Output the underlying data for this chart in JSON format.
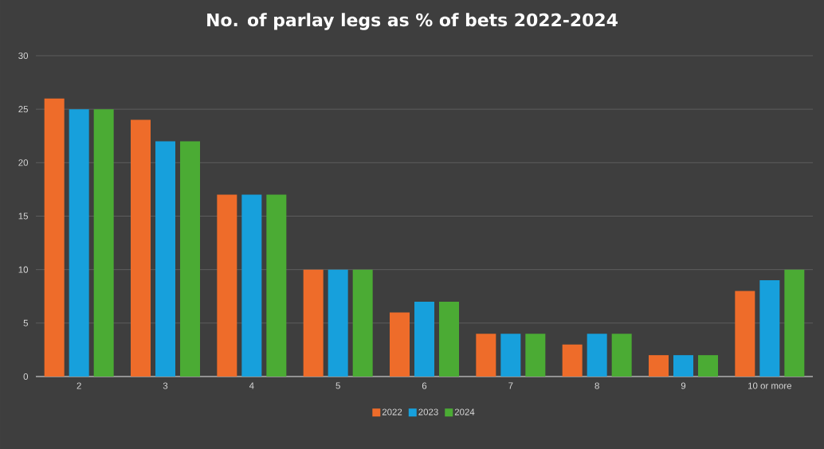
{
  "chart_data": {
    "type": "bar",
    "title": "No. of parlay legs as % of bets 2022-2024",
    "categories": [
      "2",
      "3",
      "4",
      "5",
      "6",
      "7",
      "8",
      "9",
      "10 or more"
    ],
    "series": [
      {
        "name": "2022",
        "color": "#ee6c2a",
        "values": [
          26,
          24,
          17,
          10,
          6,
          4,
          3,
          2,
          8
        ]
      },
      {
        "name": "2023",
        "color": "#17a0dc",
        "values": [
          25,
          22,
          17,
          10,
          7,
          4,
          4,
          2,
          9
        ]
      },
      {
        "name": "2024",
        "color": "#4bab34",
        "values": [
          25,
          22,
          17,
          10,
          7,
          4,
          4,
          2,
          10
        ]
      }
    ],
    "ylim": [
      0,
      30
    ],
    "yticks": [
      0,
      5,
      10,
      15,
      20,
      25,
      30
    ],
    "grid": "y",
    "legend": "bottom"
  }
}
